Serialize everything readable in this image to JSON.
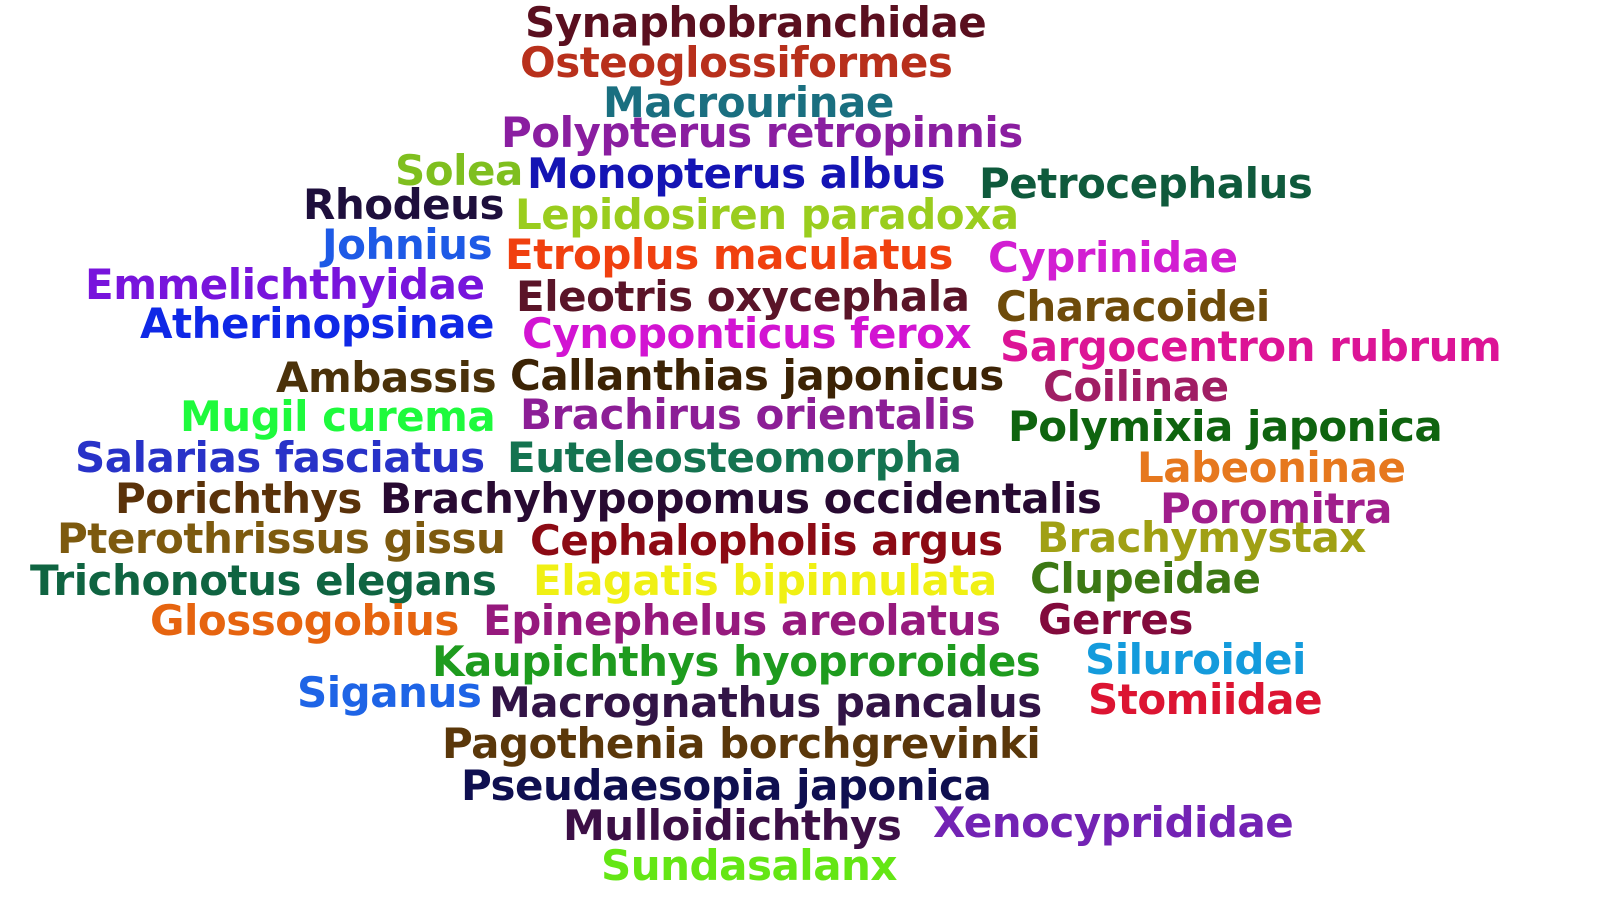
{
  "words": [
    {
      "text": "Synaphobranchidae",
      "color": "#5a0f1f"
    },
    {
      "text": "Osteoglossiformes",
      "color": "#b8301c"
    },
    {
      "text": "Macrourinae",
      "color": "#1a6f80"
    },
    {
      "text": "Polypterus retropinnis",
      "color": "#8a1ea0"
    },
    {
      "text": "Solea",
      "color": "#7fbf1f"
    },
    {
      "text": "Monopterus albus",
      "color": "#1414b4"
    },
    {
      "text": "Petrocephalus",
      "color": "#0f5a3c"
    },
    {
      "text": "Rhodeus",
      "color": "#1e0f3c"
    },
    {
      "text": "Lepidosiren paradoxa",
      "color": "#9acd1e"
    },
    {
      "text": "Johnius",
      "color": "#1e5ae6"
    },
    {
      "text": "Etroplus maculatus",
      "color": "#f0400f"
    },
    {
      "text": "Cyprinidae",
      "color": "#d21ed2"
    },
    {
      "text": "Emmelichthyidae",
      "color": "#7814dc"
    },
    {
      "text": "Eleotris oxycephala",
      "color": "#5a1428"
    },
    {
      "text": "Characoidei",
      "color": "#6e4b0a"
    },
    {
      "text": "Atherinopsinae",
      "color": "#0f28e6"
    },
    {
      "text": "Cynoponticus ferox",
      "color": "#d214d2"
    },
    {
      "text": "Sargocentron rubrum",
      "color": "#dc1496"
    },
    {
      "text": "Ambassis",
      "color": "#4b320a"
    },
    {
      "text": "Callanthias japonicus",
      "color": "#3c2305"
    },
    {
      "text": "Coilinae",
      "color": "#a01e64"
    },
    {
      "text": "Mugil curema",
      "color": "#1efa3c"
    },
    {
      "text": "Brachirus orientalis",
      "color": "#8c1e96"
    },
    {
      "text": "Polymixia japonica",
      "color": "#0f640f"
    },
    {
      "text": "Salarias fasciatus",
      "color": "#2832c8"
    },
    {
      "text": "Euteleosteomorpha",
      "color": "#147350"
    },
    {
      "text": "Labeoninae",
      "color": "#e6781e"
    },
    {
      "text": "Porichthys",
      "color": "#5a320a"
    },
    {
      "text": "Brachyhypopomus occidentalis",
      "color": "#280a32"
    },
    {
      "text": "Poromitra",
      "color": "#a01e8c"
    },
    {
      "text": "Pterothrissus gissu",
      "color": "#7d5a0f"
    },
    {
      "text": "Cephalopholis argus",
      "color": "#8c0a14"
    },
    {
      "text": "Brachymystax",
      "color": "#a0a014"
    },
    {
      "text": "Trichonotus elegans",
      "color": "#0f6441"
    },
    {
      "text": "Elagatis bipinnulata",
      "color": "#f0f014"
    },
    {
      "text": "Clupeidae",
      "color": "#3c7814"
    },
    {
      "text": "Glossogobius",
      "color": "#e6640f"
    },
    {
      "text": "Epinephelus areolatus",
      "color": "#96197d"
    },
    {
      "text": "Gerres",
      "color": "#820a3c"
    },
    {
      "text": "Kaupichthys hyoproroides",
      "color": "#1e9b1e"
    },
    {
      "text": "Siluroidei",
      "color": "#149bdc"
    },
    {
      "text": "Siganus",
      "color": "#1e64e6"
    },
    {
      "text": "Macrognathus pancalus",
      "color": "#321446"
    },
    {
      "text": "Stomiidae",
      "color": "#dc1432"
    },
    {
      "text": "Pagothenia borchgrevinki",
      "color": "#5a370a"
    },
    {
      "text": "Pseudaesopia japonica",
      "color": "#0f0f50"
    },
    {
      "text": "Mulloidichthys",
      "color": "#3c0f46"
    },
    {
      "text": "Xenocyprididae",
      "color": "#7323b4"
    },
    {
      "text": "Sundasalanx",
      "color": "#64e614"
    }
  ]
}
